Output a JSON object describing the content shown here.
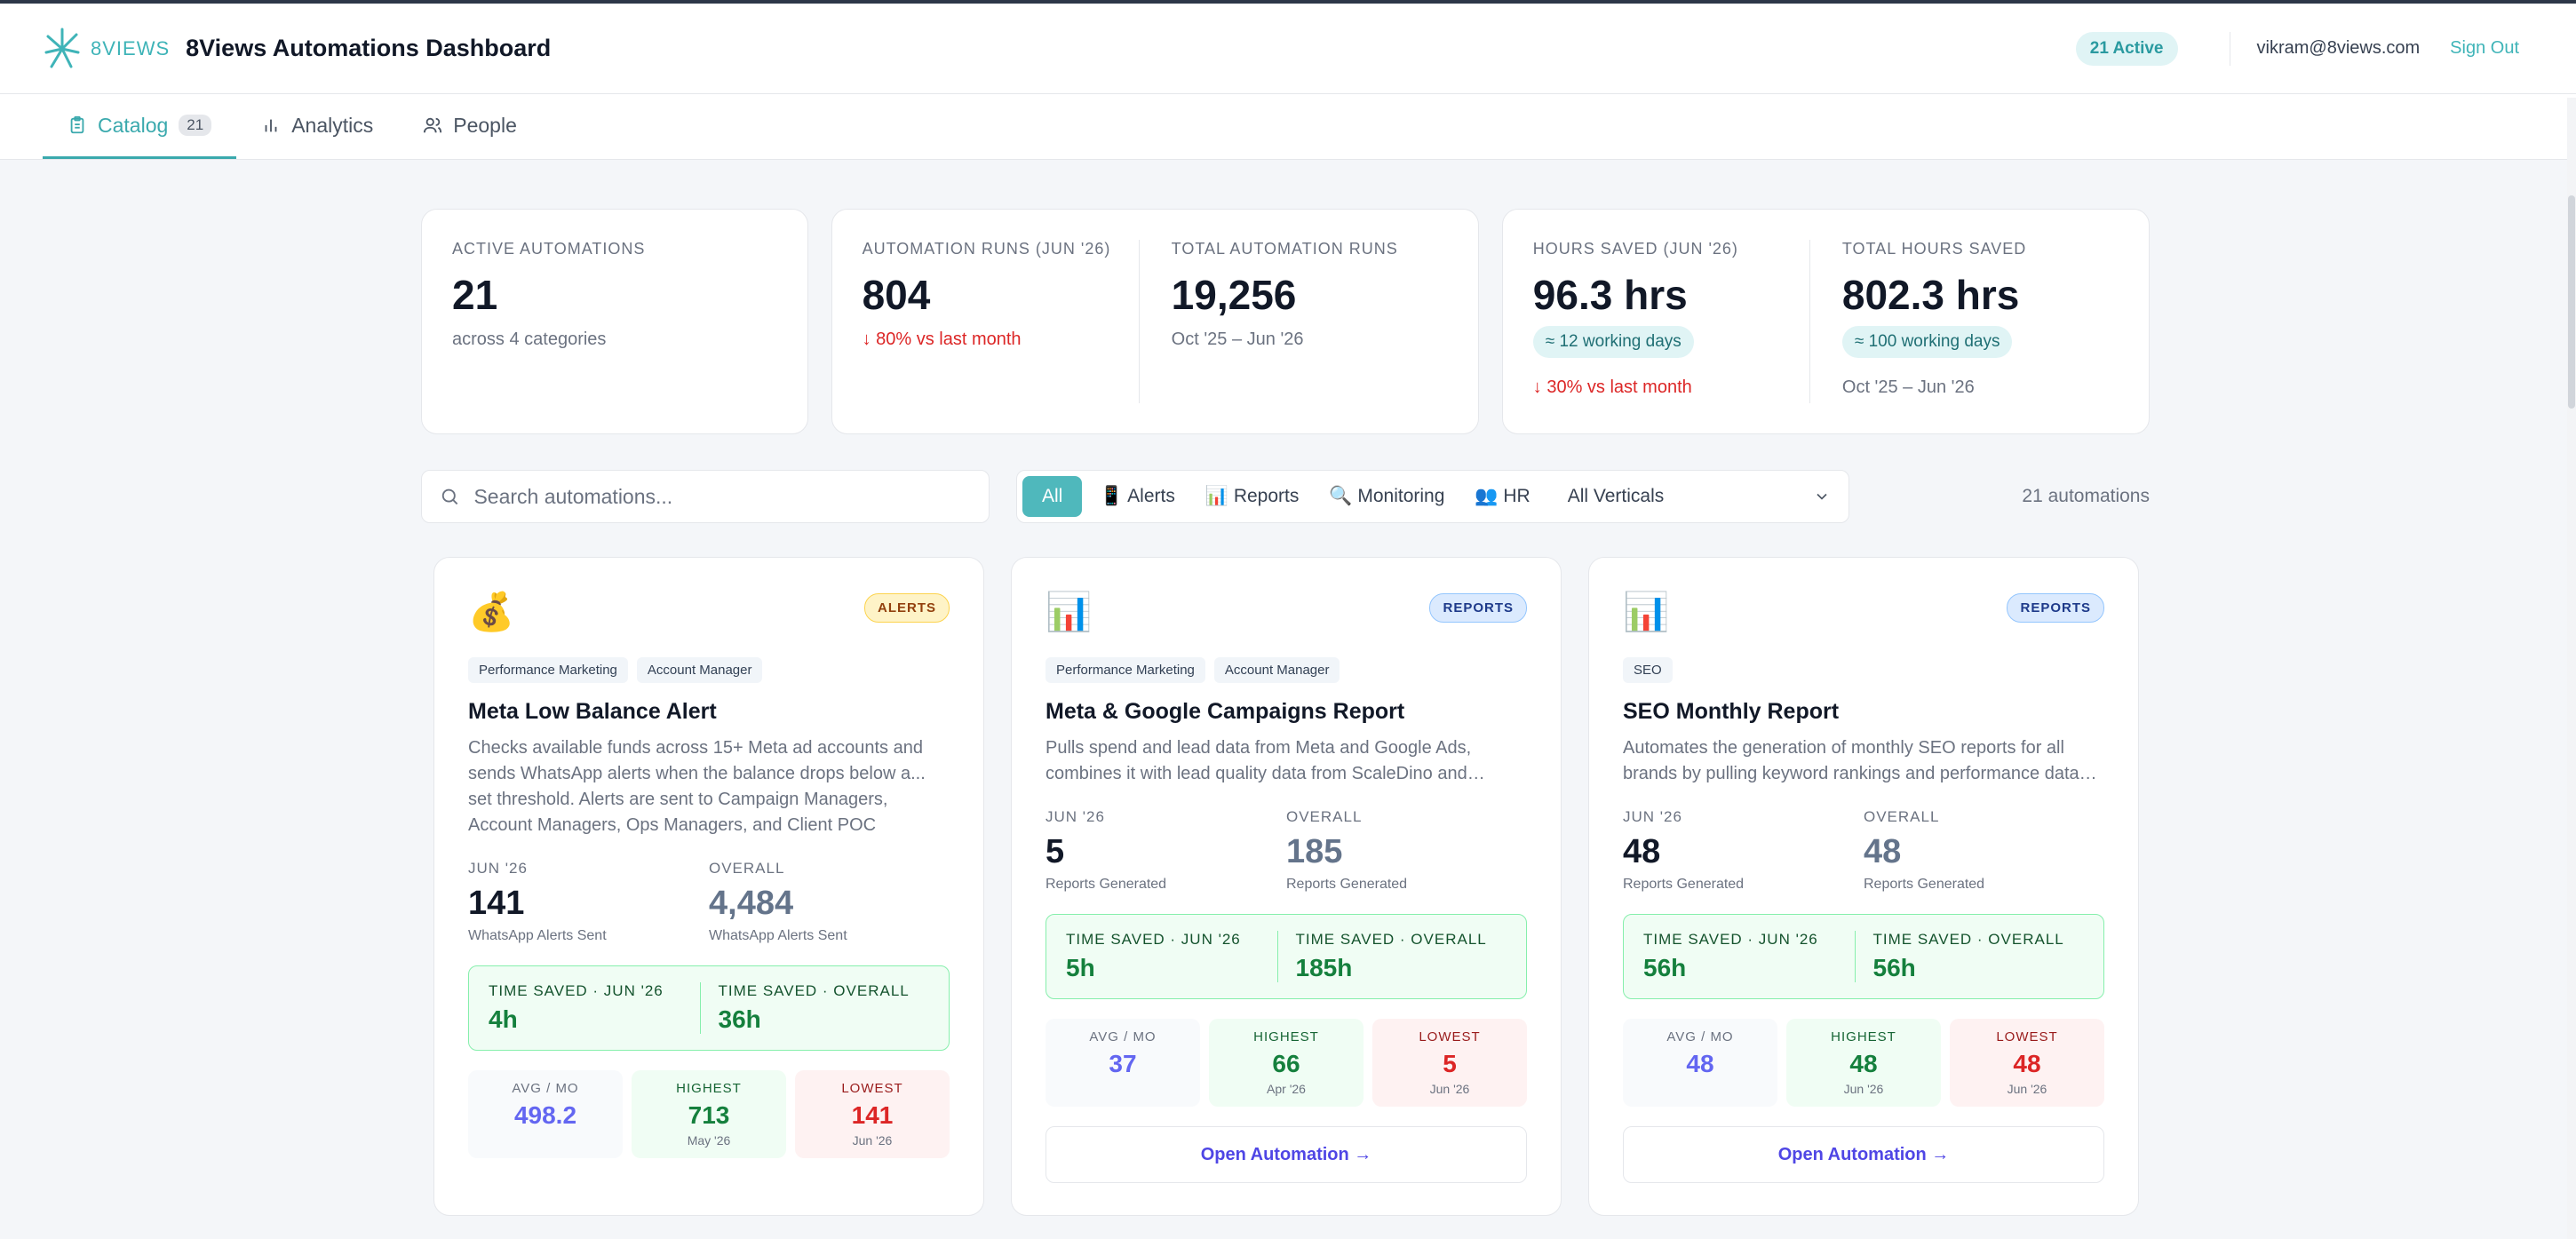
{
  "header": {
    "logo_text": "8VIEWS",
    "title": "8Views Automations Dashboard",
    "active_badge": "21 Active",
    "user_email": "vikram@8views.com",
    "sign_out": "Sign Out",
    "accent_color": "#3fb4b8"
  },
  "tabs": [
    {
      "label": "Catalog",
      "count": "21",
      "icon": "clipboard-icon",
      "active": true
    },
    {
      "label": "Analytics",
      "icon": "bar-chart-icon"
    },
    {
      "label": "People",
      "icon": "people-icon"
    }
  ],
  "stats": {
    "active": {
      "label": "ACTIVE AUTOMATIONS",
      "value": "21",
      "sub": "across 4 categories"
    },
    "runs_month": {
      "label": "AUTOMATION RUNS (JUN '26)",
      "value": "804",
      "change": "↓ 80% vs last month"
    },
    "runs_total": {
      "label": "TOTAL AUTOMATION RUNS",
      "value": "19,256",
      "sub": "Oct '25 – Jun '26"
    },
    "hours_month": {
      "label": "HOURS SAVED (JUN '26)",
      "value": "96.3 hrs",
      "pill": "≈ 12 working days",
      "change": "↓ 30% vs last month"
    },
    "hours_total": {
      "label": "TOTAL HOURS SAVED",
      "value": "802.3 hrs",
      "pill": "≈ 100 working days",
      "sub": "Oct '25 – Jun '26"
    }
  },
  "search": {
    "placeholder": "Search automations..."
  },
  "filters": {
    "all": "All",
    "alerts": "📱 Alerts",
    "reports": "📊 Reports",
    "monitoring": "🔍 Monitoring",
    "hr": "👥 HR",
    "vertical_select": "All Verticals"
  },
  "count_label": "21 automations",
  "cards": [
    {
      "emoji": "💰",
      "badge": "ALERTS",
      "tags": [
        "Performance Marketing",
        "Account Manager"
      ],
      "title": "Meta Low Balance Alert",
      "description": "Checks available funds across 15+ Meta ad accounts and sends WhatsApp alerts when the balance drops below a... set threshold. Alerts are sent to Campaign Managers, Account Managers, Ops Managers, and Client POC",
      "month_label": "JUN '26",
      "month_value": "141",
      "month_sub": "WhatsApp Alerts Sent",
      "overall_label": "OVERALL",
      "overall_value": "4,484",
      "overall_sub": "WhatsApp Alerts Sent",
      "ts_month_label": "TIME SAVED · JUN '26",
      "ts_month": "4h",
      "ts_overall_label": "TIME SAVED · OVERALL",
      "ts_overall": "36h",
      "avg_label": "AVG / MO",
      "avg": "498.2",
      "high_label": "HIGHEST",
      "high": "713",
      "high_date": "May '26",
      "low_label": "LOWEST",
      "low": "141",
      "low_date": "Jun '26"
    },
    {
      "emoji": "📊",
      "badge": "REPORTS",
      "tags": [
        "Performance Marketing",
        "Account Manager"
      ],
      "title": "Meta & Google Campaigns Report",
      "description": "Pulls spend and lead data from Meta and Google Ads, combines it with lead quality data from ScaleDino and generates a report for the campaign team.",
      "month_label": "JUN '26",
      "month_value": "5",
      "month_sub": "Reports Generated",
      "overall_label": "OVERALL",
      "overall_value": "185",
      "overall_sub": "Reports Generated",
      "ts_month_label": "TIME SAVED · JUN '26",
      "ts_month": "5h",
      "ts_overall_label": "TIME SAVED · OVERALL",
      "ts_overall": "185h",
      "avg_label": "AVG / MO",
      "avg": "37",
      "high_label": "HIGHEST",
      "high": "66",
      "high_date": "Apr '26",
      "low_label": "LOWEST",
      "low": "5",
      "low_date": "Jun '26",
      "open_label": "Open Automation →"
    },
    {
      "emoji": "📊",
      "badge": "REPORTS",
      "tags": [
        "SEO"
      ],
      "title": "SEO Monthly Report",
      "description": "Automates the generation of monthly SEO reports for all brands by pulling keyword rankings and performance data from the tracking tools.",
      "month_label": "JUN '26",
      "month_value": "48",
      "month_sub": "Reports Generated",
      "overall_label": "OVERALL",
      "overall_value": "48",
      "overall_sub": "Reports Generated",
      "ts_month_label": "TIME SAVED · JUN '26",
      "ts_month": "56h",
      "ts_overall_label": "TIME SAVED · OVERALL",
      "ts_overall": "56h",
      "avg_label": "AVG / MO",
      "avg": "48",
      "high_label": "HIGHEST",
      "high": "48",
      "high_date": "Jun '26",
      "low_label": "LOWEST",
      "low": "48",
      "low_date": "Jun '26",
      "open_label": "Open Automation →"
    }
  ]
}
